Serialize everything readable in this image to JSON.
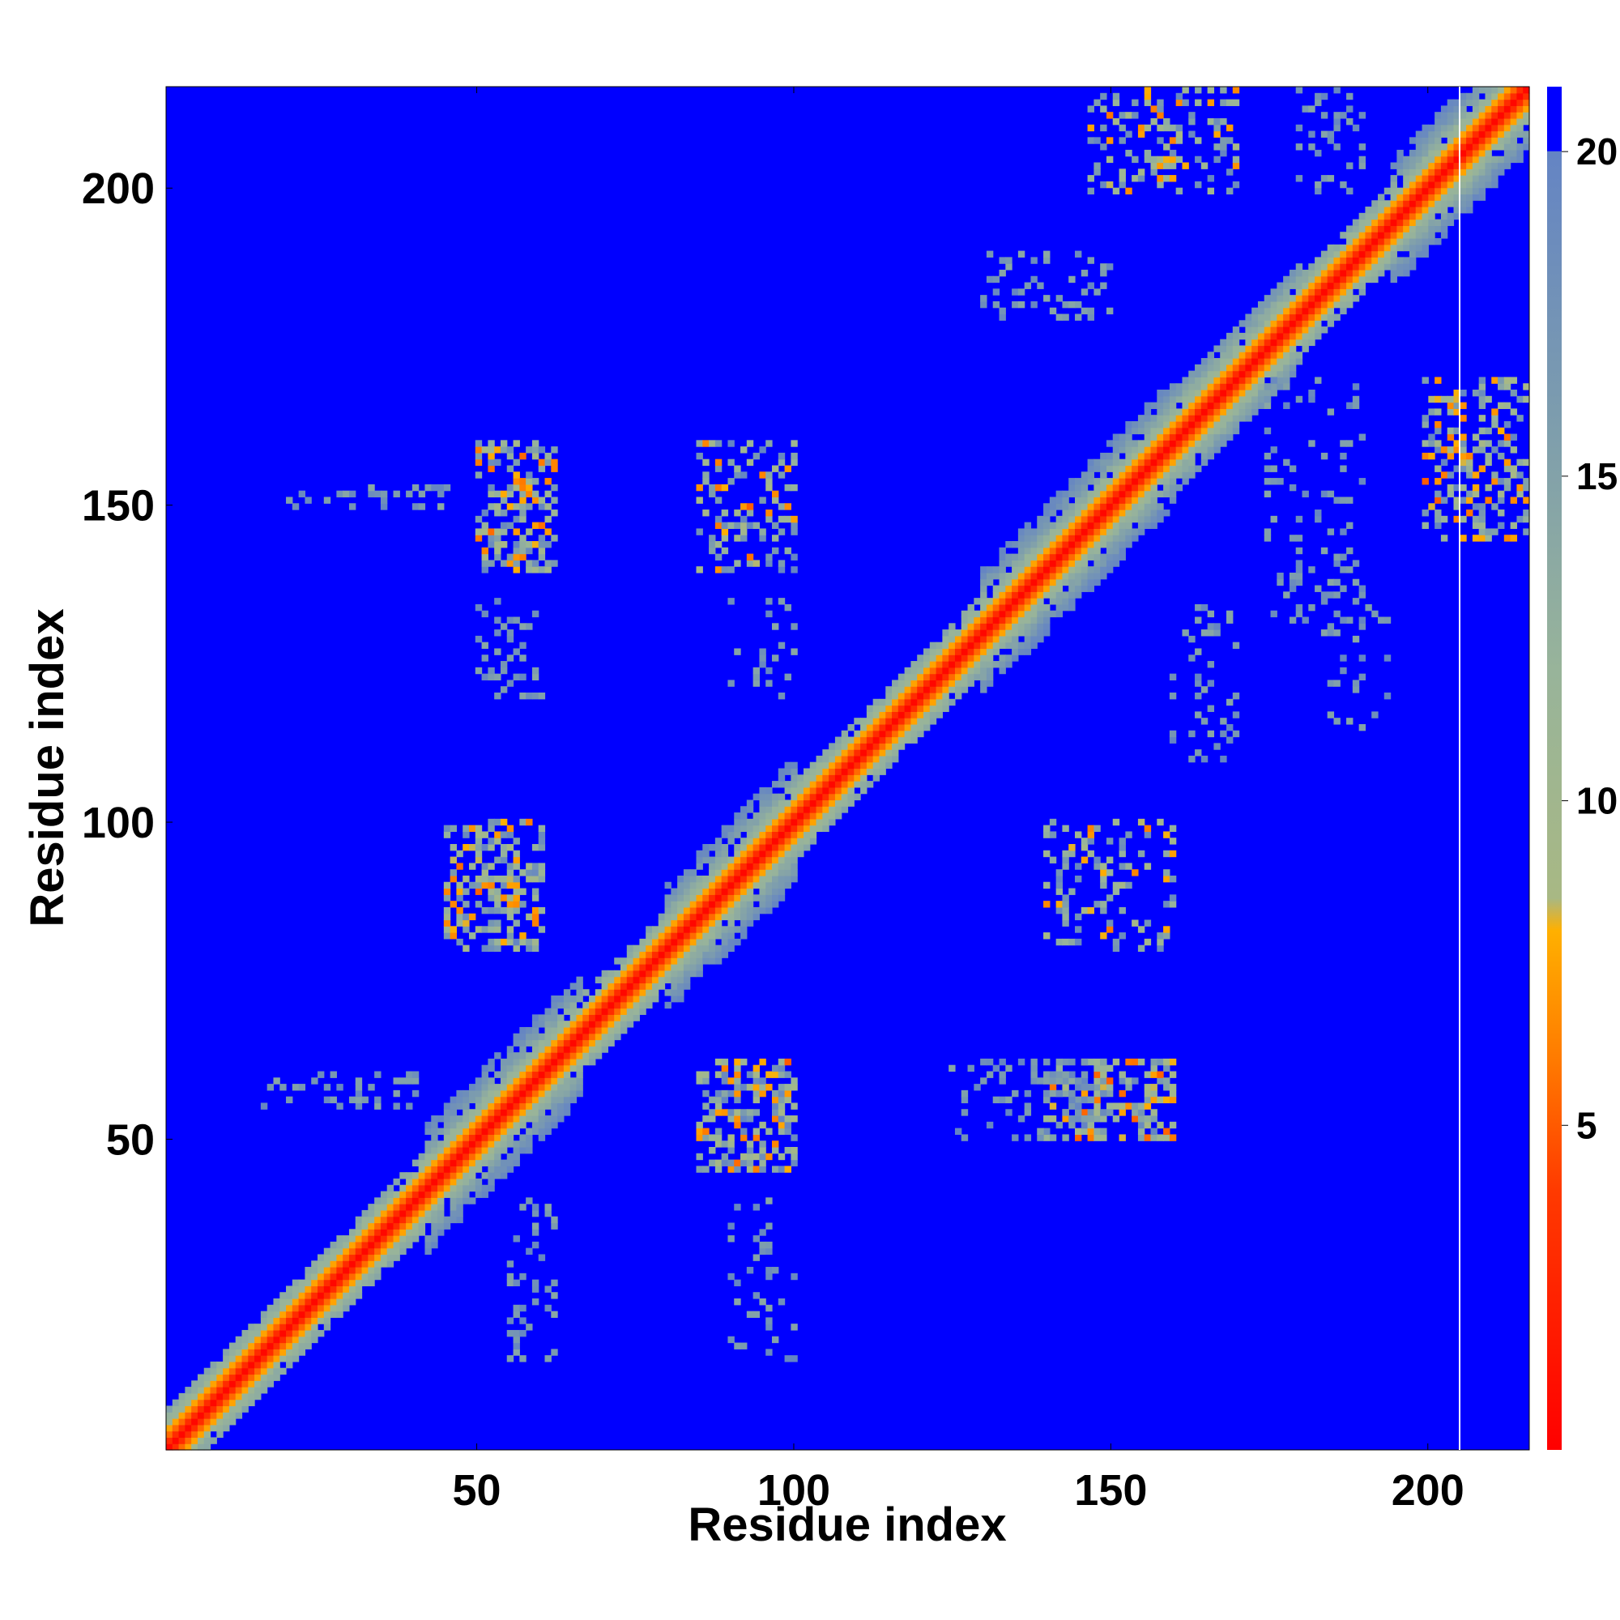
{
  "chart_data": {
    "type": "heatmap",
    "title": "",
    "xlabel": "Residue index",
    "ylabel": "Residue index",
    "xlim": [
      1,
      216
    ],
    "ylim": [
      1,
      216
    ],
    "xticks": [
      50,
      100,
      150,
      200
    ],
    "yticks": [
      50,
      100,
      150,
      200
    ],
    "n_residues": 216,
    "colorbar": {
      "ticks": [
        5,
        10,
        15,
        20
      ],
      "range": [
        0,
        21
      ],
      "stops": [
        {
          "value": 0,
          "color": "#ff0000"
        },
        {
          "value": 4,
          "color": "#ff3a00"
        },
        {
          "value": 6,
          "color": "#ff7a00"
        },
        {
          "value": 8,
          "color": "#ffb000"
        },
        {
          "value": 8.5,
          "color": "#a8b884"
        },
        {
          "value": 12,
          "color": "#98b49a"
        },
        {
          "value": 16,
          "color": "#7c9cae"
        },
        {
          "value": 20,
          "color": "#6484c4"
        },
        {
          "value": 20.01,
          "color": "#0000ff"
        },
        {
          "value": 21,
          "color": "#0000ff"
        }
      ]
    },
    "background_color": "#0000ff",
    "diagonal_band_halfwidth": 6,
    "blocks": [
      {
        "i": [
          1,
          30
        ],
        "j": [
          1,
          30
        ],
        "w": 5
      },
      {
        "i": [
          42,
          66
        ],
        "j": [
          42,
          66
        ],
        "w": 12
      },
      {
        "i": [
          80,
          100
        ],
        "j": [
          80,
          100
        ],
        "w": 10
      },
      {
        "i": [
          130,
          160
        ],
        "j": [
          130,
          160
        ],
        "w": 10
      },
      {
        "i": [
          160,
          180
        ],
        "j": [
          160,
          180
        ],
        "w": 8
      },
      {
        "i": [
          195,
          216
        ],
        "j": [
          195,
          216
        ],
        "w": 10
      }
    ],
    "patches": [
      {
        "x": [
          50,
          62
        ],
        "y": [
          140,
          160
        ],
        "density": 0.45,
        "min": 6
      },
      {
        "x": [
          85,
          100
        ],
        "y": [
          140,
          160
        ],
        "density": 0.3,
        "min": 6
      },
      {
        "x": [
          45,
          60
        ],
        "y": [
          80,
          100
        ],
        "density": 0.45,
        "min": 6
      },
      {
        "x": [
          85,
          100
        ],
        "y": [
          45,
          62
        ],
        "density": 0.5,
        "min": 6
      },
      {
        "x": [
          140,
          160
        ],
        "y": [
          50,
          62
        ],
        "density": 0.45,
        "min": 5
      },
      {
        "x": [
          140,
          160
        ],
        "y": [
          80,
          100
        ],
        "density": 0.25,
        "min": 6
      },
      {
        "x": [
          147,
          170
        ],
        "y": [
          200,
          216
        ],
        "density": 0.3,
        "min": 6
      },
      {
        "x": [
          200,
          216
        ],
        "y": [
          145,
          170
        ],
        "density": 0.35,
        "min": 6
      },
      {
        "x": [
          16,
          40
        ],
        "y": [
          55,
          60
        ],
        "density": 0.2,
        "min": 14
      },
      {
        "x": [
          55,
          62
        ],
        "y": [
          15,
          40
        ],
        "density": 0.2,
        "min": 14
      },
      {
        "x": [
          90,
          100
        ],
        "y": [
          15,
          40
        ],
        "density": 0.12,
        "min": 14
      },
      {
        "x": [
          125,
          150
        ],
        "y": [
          50,
          62
        ],
        "density": 0.2,
        "min": 14
      },
      {
        "x": [
          175,
          190
        ],
        "y": [
          130,
          170
        ],
        "density": 0.15,
        "min": 14
      },
      {
        "x": [
          180,
          190
        ],
        "y": [
          200,
          216
        ],
        "density": 0.2,
        "min": 14
      },
      {
        "x": [
          130,
          150
        ],
        "y": [
          180,
          190
        ],
        "density": 0.2,
        "min": 14
      },
      {
        "x": [
          20,
          45
        ],
        "y": [
          150,
          153
        ],
        "density": 0.25,
        "min": 14
      },
      {
        "x": [
          50,
          60
        ],
        "y": [
          120,
          135
        ],
        "density": 0.2,
        "min": 14
      },
      {
        "x": [
          90,
          100
        ],
        "y": [
          120,
          135
        ],
        "density": 0.15,
        "min": 14
      },
      {
        "x": [
          160,
          170
        ],
        "y": [
          110,
          135
        ],
        "density": 0.15,
        "min": 14
      },
      {
        "x": [
          185,
          195
        ],
        "y": [
          115,
          135
        ],
        "density": 0.12,
        "min": 14
      }
    ]
  }
}
